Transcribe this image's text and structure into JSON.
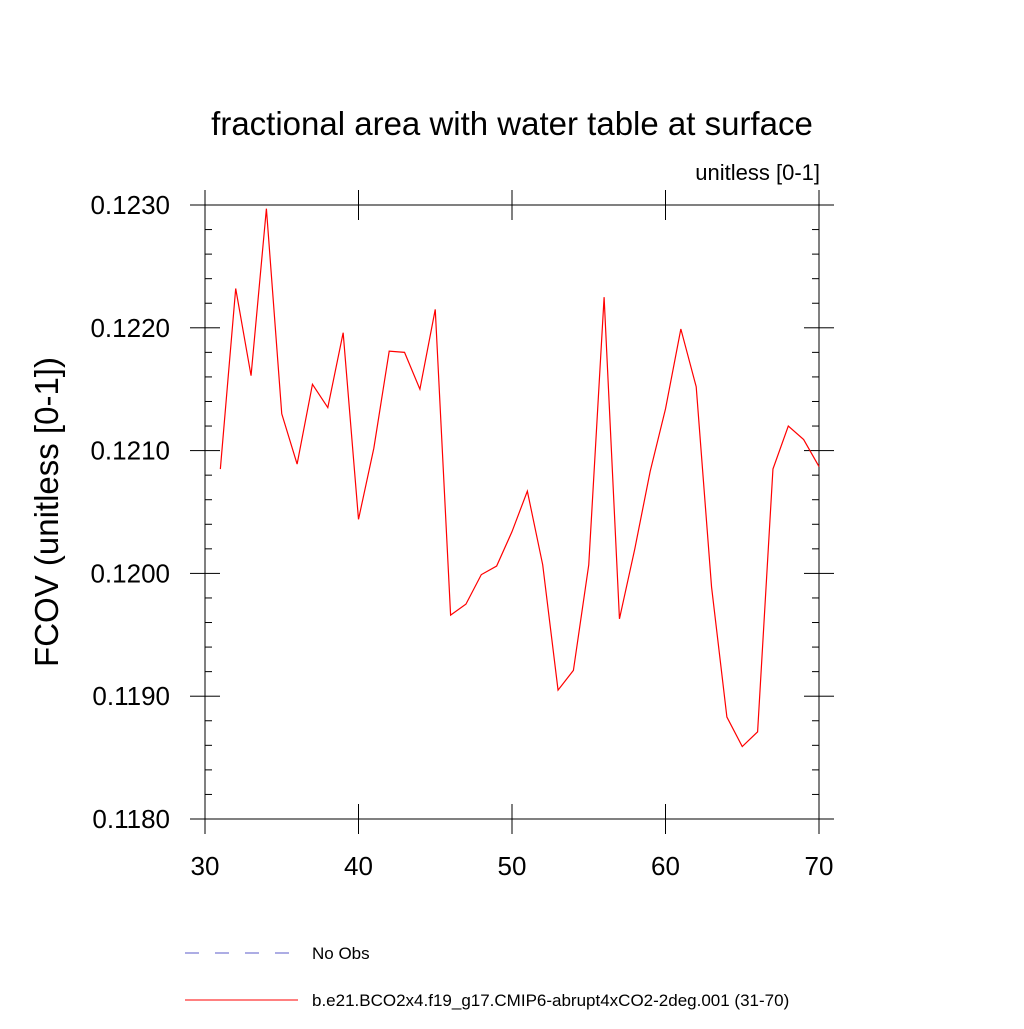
{
  "chart_data": {
    "type": "line",
    "title": "fractional area with water table at surface",
    "subtitle": "unitless [0-1]",
    "xlabel": "",
    "ylabel": "FCOV  (unitless [0-1])",
    "xlim": [
      30,
      70
    ],
    "ylim": [
      0.118,
      0.123
    ],
    "x_ticks": [
      30,
      40,
      50,
      60,
      70
    ],
    "x_tick_labels": [
      "30",
      "40",
      "50",
      "60",
      "70"
    ],
    "y_ticks": [
      0.118,
      0.119,
      0.12,
      0.121,
      0.122,
      0.123
    ],
    "y_tick_labels": [
      "0.1180",
      "0.1190",
      "0.1200",
      "0.1210",
      "0.1220",
      "0.1230"
    ],
    "grid": false,
    "legend_position": "bottom-left",
    "series": [
      {
        "name": "No Obs",
        "color": "#5b5bc8",
        "dash": "dashed",
        "x": [],
        "values": []
      },
      {
        "name": "b.e21.BCO2x4.f19_g17.CMIP6-abrupt4xCO2-2deg.001 (31-70)",
        "color": "#ff0000",
        "dash": "solid",
        "x": [
          31,
          32,
          33,
          34,
          35,
          36,
          37,
          38,
          39,
          40,
          41,
          42,
          43,
          44,
          45,
          46,
          47,
          48,
          49,
          50,
          51,
          52,
          53,
          54,
          55,
          56,
          57,
          58,
          59,
          60,
          61,
          62,
          63,
          64,
          65,
          66,
          67,
          68,
          69,
          70
        ],
        "values": [
          0.12085,
          0.12232,
          0.12161,
          0.12297,
          0.1213,
          0.12089,
          0.12154,
          0.12135,
          0.12196,
          0.12044,
          0.12102,
          0.12181,
          0.1218,
          0.1215,
          0.12215,
          0.11966,
          0.11975,
          0.11999,
          0.12006,
          0.12034,
          0.12067,
          0.12007,
          0.11905,
          0.11921,
          0.12007,
          0.12225,
          0.11963,
          0.1202,
          0.12083,
          0.12134,
          0.12199,
          0.12152,
          0.11989,
          0.11883,
          0.11859,
          0.11871,
          0.12085,
          0.1212,
          0.12109,
          0.12087
        ]
      }
    ]
  }
}
